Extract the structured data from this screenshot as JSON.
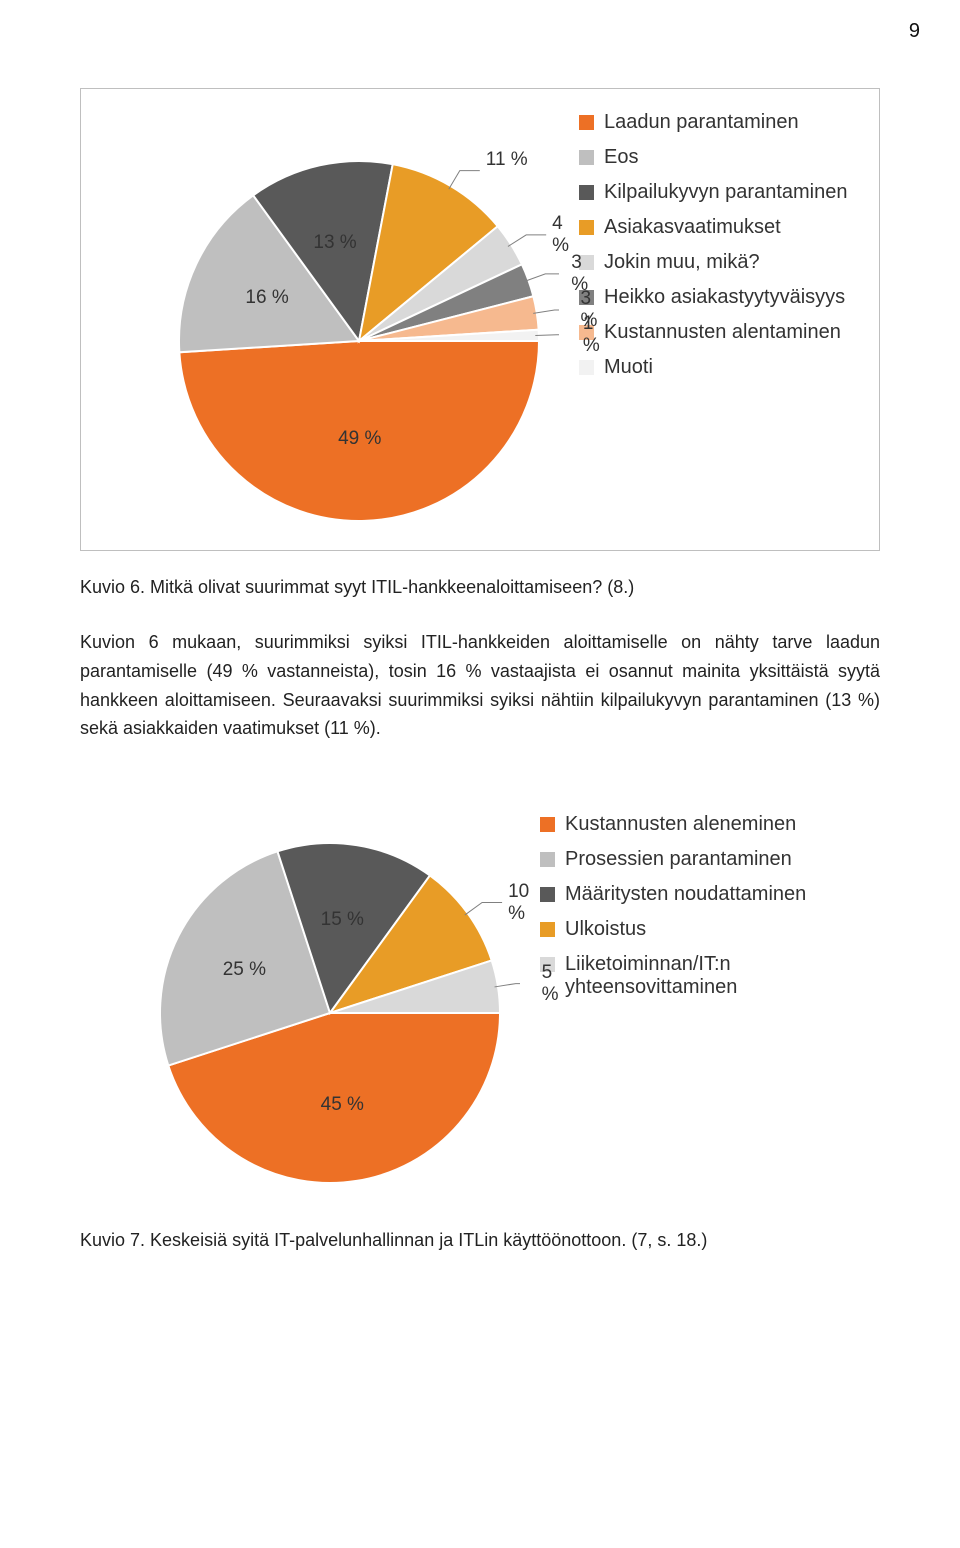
{
  "page_number": "9",
  "chart1": {
    "type": "pie",
    "border_color": "#bfbfbf",
    "background_color": "#ffffff",
    "radius": 180,
    "slices": [
      {
        "label": "Laadun parantaminen",
        "value": 49,
        "callout": "49 %",
        "color": "#ed7025"
      },
      {
        "label": "Eos",
        "value": 16,
        "callout": "16 %",
        "color": "#bfbfbf"
      },
      {
        "label": "Kilpailukyvyn parantaminen",
        "value": 13,
        "callout": "13 %",
        "color": "#595959"
      },
      {
        "label": "Asiakasvaatimukset",
        "value": 11,
        "callout": "11 %",
        "color": "#e89c26"
      },
      {
        "label": "Jokin muu, mikä?",
        "value": 4,
        "callout": "4 %",
        "color": "#d9d9d9"
      },
      {
        "label": "Heikko asiakastyytyväisyys",
        "value": 3,
        "callout": "3 %",
        "color": "#808080"
      },
      {
        "label": "Kustannusten alentaminen",
        "value": 3,
        "callout": "3 %",
        "color": "#f6b98f"
      },
      {
        "label": "Muoti",
        "value": 1,
        "callout": "1 %",
        "color": "#f2f2f2"
      }
    ],
    "label_fontsize": 20,
    "callout_color": "#333333"
  },
  "caption1": "Kuvio 6.   Mitkä olivat suurimmat syyt ITIL-hankkeenaloittamiseen? (8.)",
  "bodytext": "Kuvion 6 mukaan, suurimmiksi syiksi ITIL-hankkeiden aloittamiselle on nähty tarve laadun parantamiselle (49 % vastanneista), tosin 16 % vastaajista ei osannut mainita yksittäistä syytä hankkeen aloittamiseen. Seuraavaksi suurimmiksi syiksi nähtiin kilpailukyvyn parantaminen (13 %) sekä asiakkaiden vaatimukset (11 %).",
  "chart2": {
    "type": "pie",
    "background_color": "#ffffff",
    "radius": 170,
    "slices": [
      {
        "label": "Kustannusten aleneminen",
        "value": 45,
        "callout": "45 %",
        "color": "#ed7025"
      },
      {
        "label": "Prosessien parantaminen",
        "value": 25,
        "callout": "25 %",
        "color": "#bfbfbf"
      },
      {
        "label": "Määritysten noudattaminen",
        "value": 15,
        "callout": "15 %",
        "color": "#595959"
      },
      {
        "label": "Ulkoistus",
        "value": 10,
        "callout": "10 %",
        "color": "#e89c26"
      },
      {
        "label": "Liiketoiminnan/IT:n yhteensovittaminen",
        "value": 5,
        "callout": "5 %",
        "color": "#d9d9d9"
      }
    ],
    "label_fontsize": 20,
    "callout_color": "#333333"
  },
  "caption2": "Kuvio 7.   Keskeisiä syitä IT-palvelunhallinnan ja ITLin käyttöönottoon. (7, s. 18.)"
}
